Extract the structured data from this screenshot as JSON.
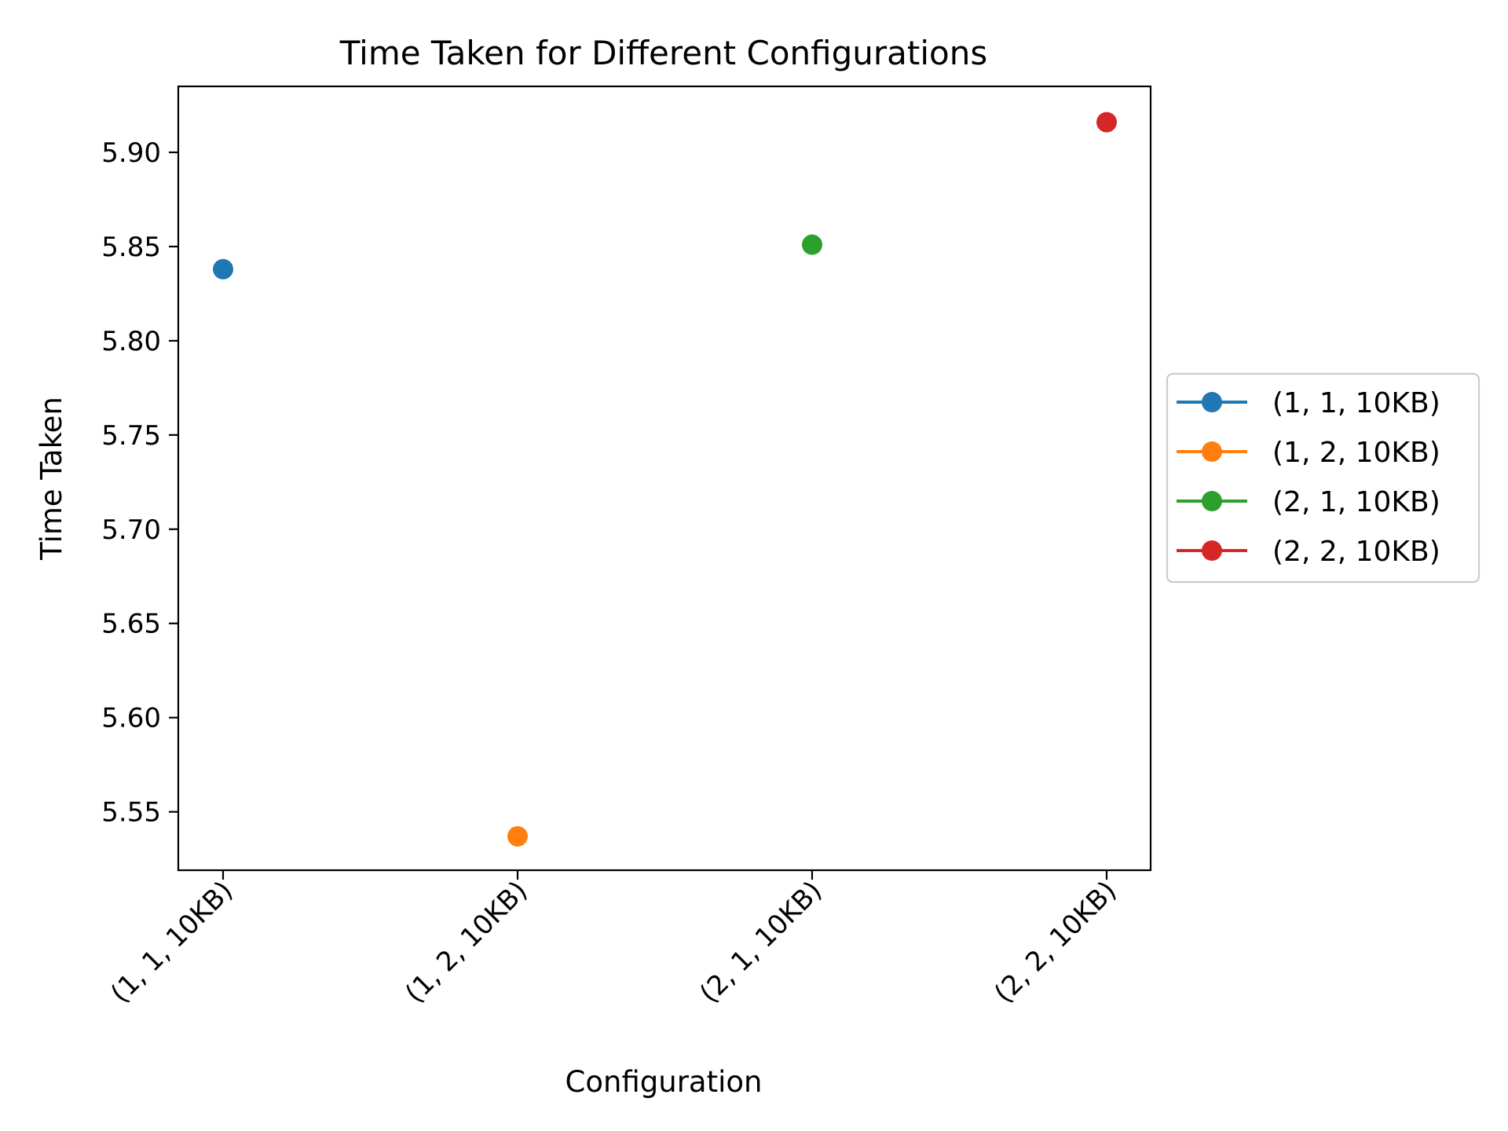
{
  "chart_data": {
    "type": "scatter",
    "title": "Time Taken for Different Configurations",
    "xlabel": "Configuration",
    "ylabel": "Time Taken",
    "categories": [
      "(1, 1, 10KB)",
      "(1, 2, 10KB)",
      "(2, 1, 10KB)",
      "(2, 2, 10KB)"
    ],
    "series": [
      {
        "name": "(1, 1, 10KB)",
        "category": "(1, 1, 10KB)",
        "value": 5.838,
        "color": "#1f77b4"
      },
      {
        "name": "(1, 2, 10KB)",
        "category": "(1, 2, 10KB)",
        "value": 5.537,
        "color": "#ff7f0e"
      },
      {
        "name": "(2, 1, 10KB)",
        "category": "(2, 1, 10KB)",
        "value": 5.851,
        "color": "#2ca02c"
      },
      {
        "name": "(2, 2, 10KB)",
        "category": "(2, 2, 10KB)",
        "value": 5.916,
        "color": "#d62728"
      }
    ],
    "ylim": [
      5.519,
      5.935
    ],
    "yticks": [
      "5.55",
      "5.60",
      "5.65",
      "5.70",
      "5.75",
      "5.80",
      "5.85",
      "5.90"
    ],
    "grid": false,
    "legend": "center-right (outside plot)"
  }
}
